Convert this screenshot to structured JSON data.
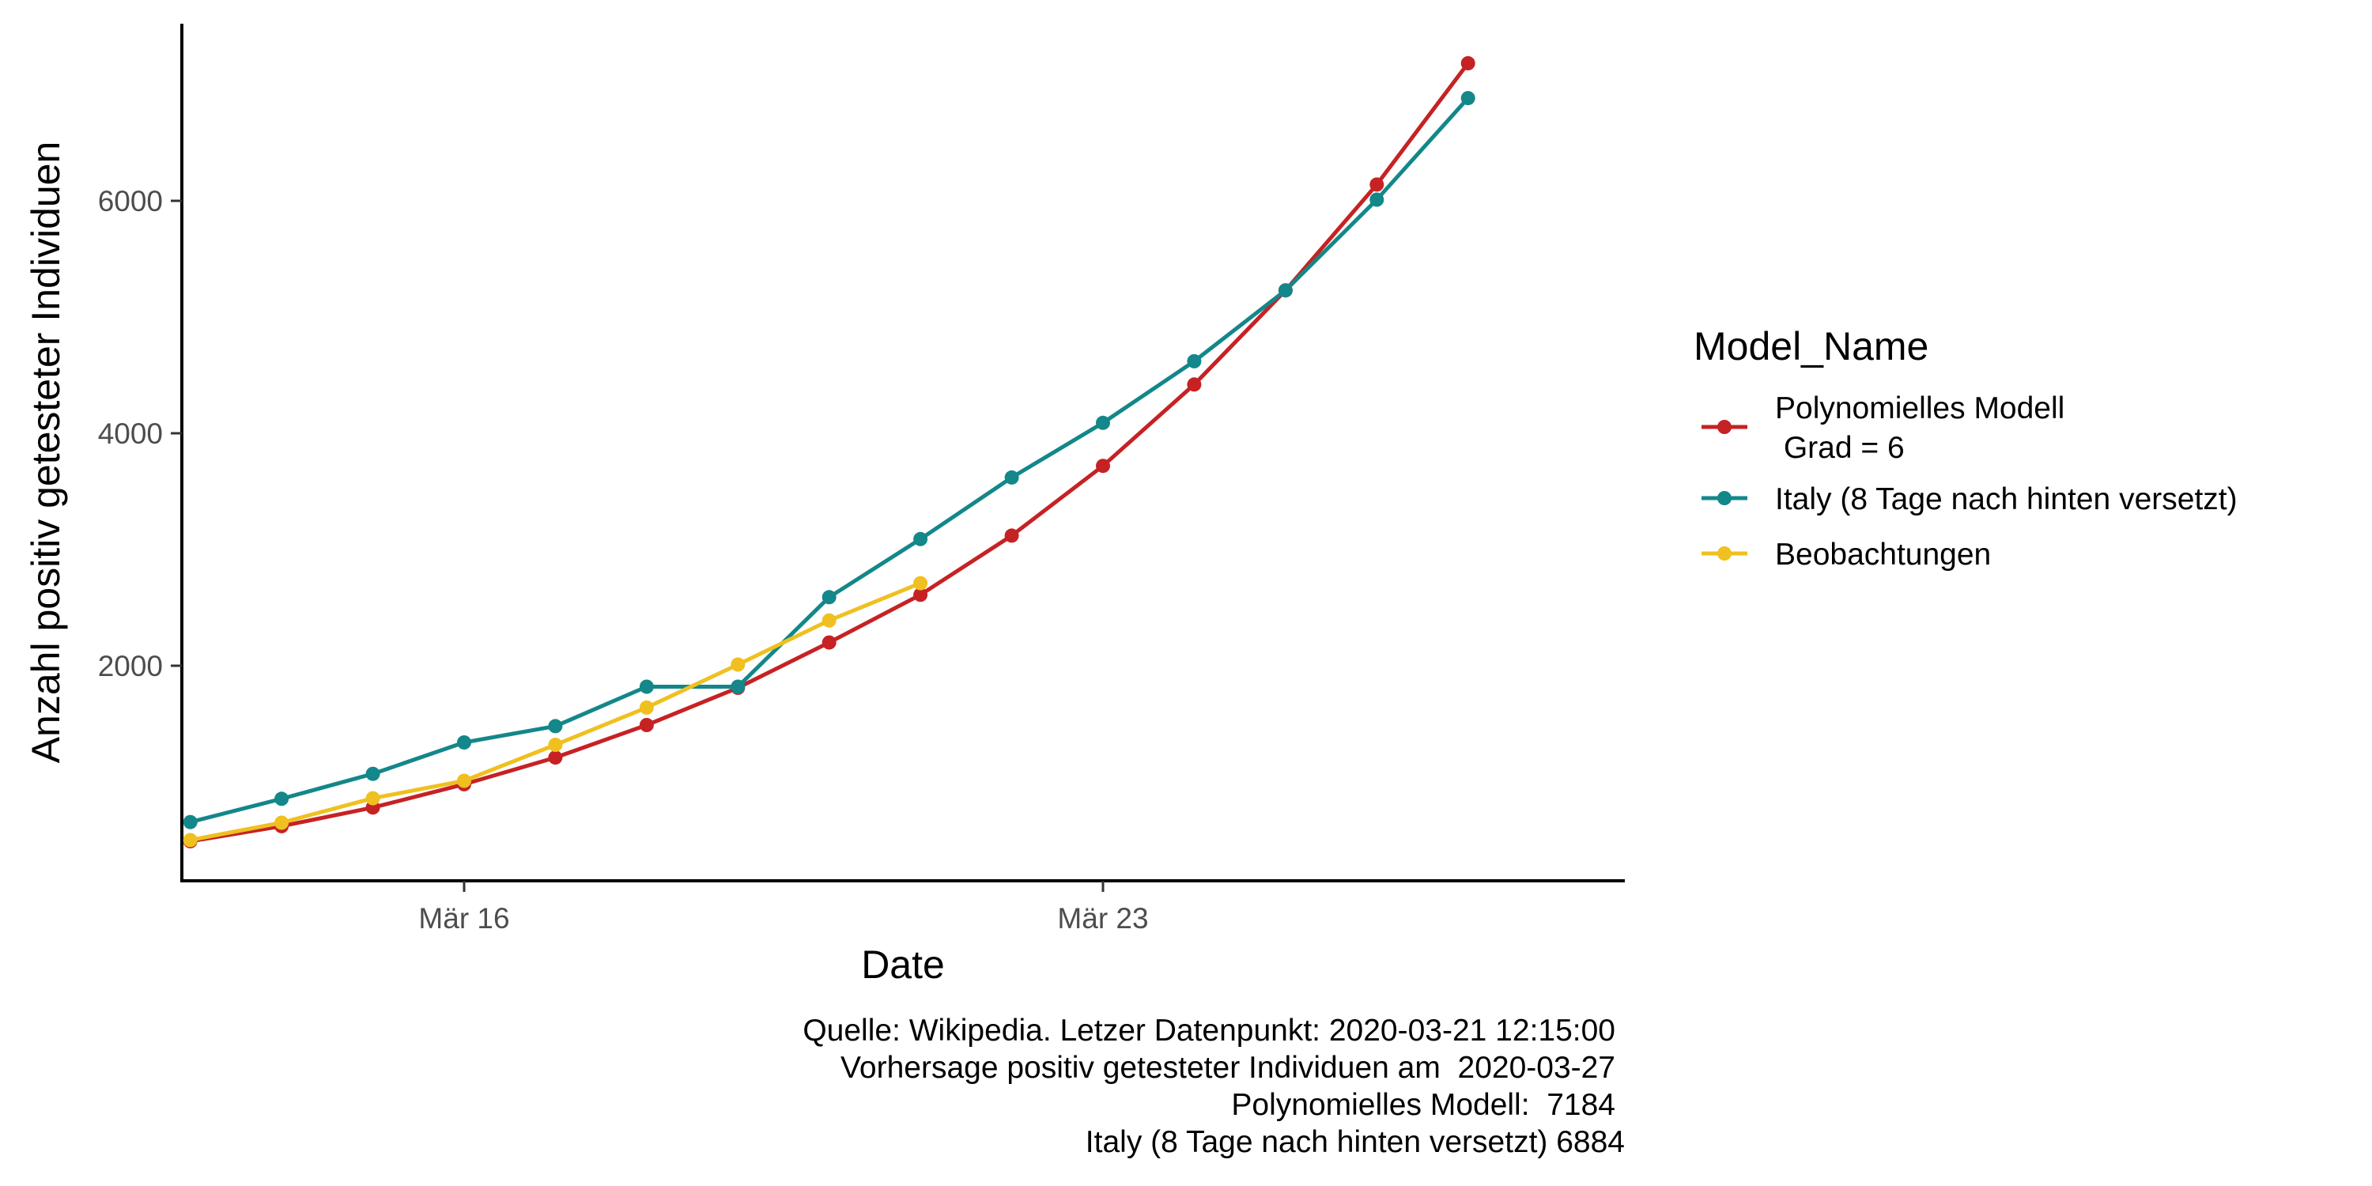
{
  "chart_data": {
    "type": "line",
    "xlabel": "Date",
    "ylabel": "Anzahl positiv getesteter Individuen",
    "x_tick_labels": [
      "Mär 16",
      "Mär 23"
    ],
    "y_ticks": [
      2000,
      4000,
      6000
    ],
    "y_tick_labels": [
      "2000",
      "4000",
      "6000"
    ],
    "x_range": [
      "2020-03-13",
      "2020-03-29"
    ],
    "ylim": [
      0,
      7500
    ],
    "grid": false,
    "legend_position": "right",
    "legend_title": "Model_Name",
    "series": [
      {
        "name": "Polynomielles Modell\n Grad = 6",
        "label_lines": [
          "Polynomielles Modell",
          " Grad = 6"
        ],
        "color": "#C62224",
        "x": [
          "2020-03-13",
          "2020-03-14",
          "2020-03-15",
          "2020-03-16",
          "2020-03-17",
          "2020-03-18",
          "2020-03-19",
          "2020-03-20",
          "2020-03-21",
          "2020-03-22",
          "2020-03-23",
          "2020-03-24",
          "2020-03-25",
          "2020-03-26",
          "2020-03-27"
        ],
        "y": [
          490,
          620,
          780,
          980,
          1210,
          1490,
          1810,
          2200,
          2610,
          3120,
          3720,
          4420,
          5230,
          6140,
          7184
        ]
      },
      {
        "name": "Italy (8 Tage nach hinten versetzt)",
        "label_lines": [
          "Italy (8 Tage nach hinten versetzt)"
        ],
        "color": "#13878A",
        "x": [
          "2020-03-13",
          "2020-03-14",
          "2020-03-15",
          "2020-03-16",
          "2020-03-17",
          "2020-03-18",
          "2020-03-19",
          "2020-03-20",
          "2020-03-21",
          "2020-03-22",
          "2020-03-23",
          "2020-03-24",
          "2020-03-25",
          "2020-03-26",
          "2020-03-27"
        ],
        "y": [
          655,
          855,
          1070,
          1340,
          1480,
          1820,
          1820,
          2590,
          3090,
          3620,
          4090,
          4620,
          5230,
          6010,
          6884
        ]
      },
      {
        "name": "Beobachtungen",
        "label_lines": [
          "Beobachtungen"
        ],
        "color": "#EFC020",
        "x": [
          "2020-03-13",
          "2020-03-14",
          "2020-03-15",
          "2020-03-16",
          "2020-03-17",
          "2020-03-18",
          "2020-03-19",
          "2020-03-20",
          "2020-03-21"
        ],
        "y": [
          500,
          650,
          860,
          1010,
          1320,
          1640,
          2010,
          2390,
          2710
        ]
      }
    ],
    "caption_lines": [
      "Quelle: Wikipedia. Letzer Datenpunkt: 2020-03-21 12:15:00",
      "Vorhersage positiv getesteter Individuen am  2020-03-27",
      "Polynomielles Modell:  7184",
      "Italy (8 Tage nach hinten versetzt) 6884"
    ]
  }
}
